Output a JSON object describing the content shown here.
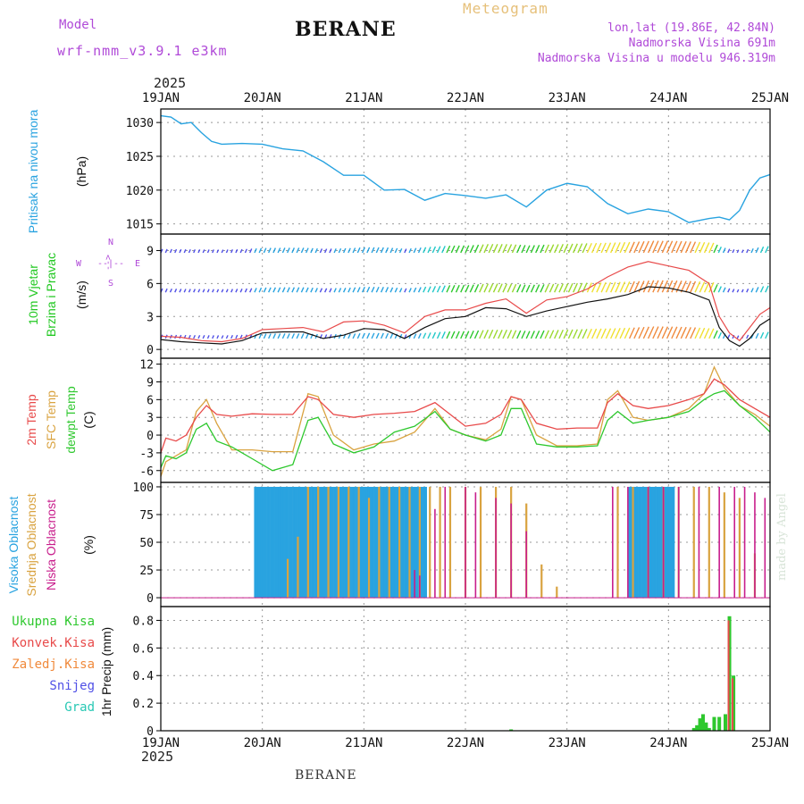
{
  "header": {
    "title": "BERANE",
    "model_label": "Model",
    "model_name": "wrf-nmm_v3.9.1 e3km",
    "meteogram": "Meteogram",
    "lonlat": "lon,lat (19.86E, 42.84N)",
    "elevation": "Nadmorska Visina 691m",
    "elevation_model": "Nadmorska Visina u modelu 946.319m",
    "year_top": "2025",
    "year_bottom": "2025"
  },
  "footer": "BERANE",
  "watermark": "made by Angel",
  "colors": {
    "pressure": "#29a3e0",
    "temp2m": "#e84a4a",
    "sfc": "#d9a340",
    "dew": "#2ec82e",
    "high": "#29a3e0",
    "mid": "#d9a340",
    "low": "#c81e8c",
    "total": "#2ec82e",
    "conv": "#e84a4a",
    "frozen": "#f08a3c",
    "snow": "#5050e6",
    "hail": "#28c8b4",
    "purple": "#b04ad8",
    "windlabel": "#22c822"
  },
  "x_axis": {
    "day_labels": [
      "19JAN",
      "20JAN",
      "21JAN",
      "22JAN",
      "23JAN",
      "24JAN",
      "25JAN"
    ]
  },
  "panels": {
    "pressure": {
      "label": "Pritisak na nivou mora",
      "unit": "(hPa)"
    },
    "wind": {
      "label1": "10m Vjetar",
      "label2": "Brzina i Pravac",
      "unit": "(m/s)",
      "dir_n": "N",
      "dir_s": "S",
      "dir_w": "W",
      "dir_e": "E",
      "arrow_v1": "<--",
      "arrow_v2": "-->",
      "arrow_h": "--|--"
    },
    "temp": {
      "label_2m": "2m Temp",
      "label_sfc": "SFC Temp",
      "label_dew": "dewpt Temp",
      "unit": "(C)"
    },
    "cloud": {
      "label_high": "Visoka Oblacnost",
      "label_mid": "Srednja Oblacnost",
      "label_low": "Niska Oblacnost",
      "unit": "(%)"
    },
    "precip": {
      "unit": "1hr Precip (mm)",
      "legend": [
        "Ukupna Kisa",
        "Konvek.Kisa",
        "Zaledj.Kisa",
        "Snijeg",
        "Grad"
      ]
    }
  },
  "chart_data": [
    {
      "type": "line",
      "title": "Pritisak na nivou mora",
      "ylabel": "(hPa)",
      "ylim": [
        1013.5,
        1032
      ],
      "yticks": [
        1015,
        1020,
        1025,
        1030
      ],
      "x_unit": "days since 19JAN 00UTC",
      "xlim": [
        0,
        6
      ],
      "series": [
        {
          "name": "Pressure",
          "x": [
            0,
            0.1,
            0.2,
            0.3,
            0.4,
            0.5,
            0.6,
            0.8,
            1.0,
            1.2,
            1.4,
            1.6,
            1.8,
            2.0,
            2.2,
            2.4,
            2.6,
            2.8,
            3.0,
            3.2,
            3.4,
            3.6,
            3.8,
            4.0,
            4.2,
            4.4,
            4.6,
            4.8,
            5.0,
            5.2,
            5.4,
            5.5,
            5.6,
            5.7,
            5.8,
            5.9,
            6.0
          ],
          "values": [
            1031.0,
            1030.8,
            1029.8,
            1030.0,
            1028.5,
            1027.2,
            1026.8,
            1026.9,
            1026.8,
            1026.1,
            1025.8,
            1024.2,
            1022.2,
            1022.2,
            1020.0,
            1020.1,
            1018.5,
            1019.5,
            1019.2,
            1018.8,
            1019.3,
            1017.5,
            1020.0,
            1021.0,
            1020.5,
            1018.0,
            1016.5,
            1017.2,
            1016.8,
            1015.2,
            1015.8,
            1016.0,
            1015.6,
            1017.0,
            1020.0,
            1021.8,
            1022.3
          ]
        }
      ]
    },
    {
      "type": "line",
      "title": "10m Vjetar Brzina i Pravac",
      "ylabel": "(m/s)",
      "ylim": [
        -0.8,
        10.5
      ],
      "yticks": [
        0,
        3,
        6,
        9
      ],
      "xlim": [
        0,
        6
      ],
      "series": [
        {
          "name": "Wind speed",
          "x": [
            0,
            0.2,
            0.4,
            0.6,
            0.8,
            1.0,
            1.2,
            1.4,
            1.6,
            1.8,
            2.0,
            2.2,
            2.4,
            2.6,
            2.8,
            3.0,
            3.2,
            3.4,
            3.6,
            3.8,
            4.0,
            4.2,
            4.4,
            4.6,
            4.8,
            5.0,
            5.2,
            5.4,
            5.5,
            5.6,
            5.7,
            5.8,
            5.9,
            6.0
          ],
          "values": [
            0.9,
            0.7,
            0.6,
            0.5,
            0.8,
            1.5,
            1.6,
            1.6,
            1.0,
            1.3,
            1.9,
            1.8,
            1.0,
            2.0,
            2.8,
            3.0,
            3.8,
            3.7,
            3.0,
            3.5,
            3.9,
            4.3,
            4.6,
            5.0,
            5.7,
            5.6,
            5.2,
            4.5,
            2.0,
            0.8,
            0.3,
            1.0,
            2.2,
            2.8
          ]
        },
        {
          "name": "Wind gust",
          "x": [
            0,
            0.2,
            0.4,
            0.6,
            0.8,
            1.0,
            1.2,
            1.4,
            1.6,
            1.8,
            2.0,
            2.2,
            2.4,
            2.6,
            2.8,
            3.0,
            3.2,
            3.4,
            3.6,
            3.8,
            4.0,
            4.2,
            4.4,
            4.6,
            4.8,
            5.0,
            5.2,
            5.4,
            5.5,
            5.6,
            5.7,
            5.8,
            5.9,
            6.0
          ],
          "values": [
            1.2,
            1.1,
            0.8,
            0.7,
            1.0,
            1.8,
            1.9,
            2.0,
            1.6,
            2.5,
            2.6,
            2.2,
            1.5,
            3.0,
            3.6,
            3.6,
            4.2,
            4.6,
            3.3,
            4.5,
            4.8,
            5.5,
            6.6,
            7.5,
            8.0,
            7.6,
            7.2,
            6.0,
            3.0,
            1.5,
            0.8,
            2.0,
            3.2,
            3.8
          ]
        }
      ]
    },
    {
      "type": "line",
      "title": "Temperature",
      "ylabel": "(C)",
      "ylim": [
        -8,
        13
      ],
      "yticks": [
        -6,
        -3,
        0,
        3,
        6,
        9,
        12
      ],
      "xlim": [
        0,
        6
      ],
      "series": [
        {
          "name": "2m Temp",
          "x": [
            0,
            0.05,
            0.15,
            0.25,
            0.35,
            0.45,
            0.55,
            0.7,
            0.9,
            1.1,
            1.3,
            1.45,
            1.55,
            1.7,
            1.9,
            2.1,
            2.3,
            2.5,
            2.7,
            2.85,
            3.0,
            3.2,
            3.35,
            3.45,
            3.55,
            3.7,
            3.9,
            4.1,
            4.3,
            4.4,
            4.5,
            4.65,
            4.8,
            5.0,
            5.2,
            5.35,
            5.45,
            5.55,
            5.7,
            5.85,
            6.0
          ],
          "values": [
            -3.0,
            -0.5,
            -1.0,
            0.0,
            3.0,
            5.0,
            3.5,
            3.2,
            3.6,
            3.5,
            3.5,
            6.5,
            6.0,
            3.5,
            3.0,
            3.5,
            3.7,
            4.0,
            5.5,
            3.5,
            1.5,
            2.0,
            3.5,
            6.5,
            6.0,
            2.0,
            1.0,
            1.2,
            1.2,
            5.5,
            7.0,
            5.0,
            4.5,
            5.0,
            6.0,
            7.0,
            9.5,
            8.5,
            6.0,
            4.5,
            3.0
          ]
        },
        {
          "name": "SFC Temp",
          "x": [
            0,
            0.05,
            0.15,
            0.25,
            0.35,
            0.45,
            0.55,
            0.7,
            0.9,
            1.1,
            1.3,
            1.45,
            1.55,
            1.7,
            1.9,
            2.1,
            2.3,
            2.5,
            2.7,
            2.85,
            3.0,
            3.2,
            3.35,
            3.45,
            3.55,
            3.7,
            3.9,
            4.1,
            4.3,
            4.4,
            4.5,
            4.65,
            4.8,
            5.0,
            5.2,
            5.35,
            5.45,
            5.55,
            5.7,
            5.85,
            6.0
          ],
          "values": [
            -7.0,
            -4.5,
            -3.5,
            -2.5,
            4.0,
            6.0,
            2.0,
            -2.5,
            -2.5,
            -2.8,
            -2.8,
            7.0,
            6.5,
            0.0,
            -2.5,
            -1.5,
            -1.0,
            0.5,
            4.5,
            1.0,
            0.0,
            -0.8,
            1.0,
            6.5,
            6.0,
            0.0,
            -1.8,
            -1.8,
            -1.5,
            6.0,
            7.5,
            3.0,
            2.5,
            3.0,
            4.5,
            7.0,
            11.5,
            8.0,
            5.0,
            3.5,
            1.5
          ]
        },
        {
          "name": "dewpt Temp",
          "x": [
            0,
            0.05,
            0.15,
            0.25,
            0.35,
            0.45,
            0.55,
            0.7,
            0.9,
            1.1,
            1.3,
            1.45,
            1.55,
            1.7,
            1.9,
            2.1,
            2.3,
            2.5,
            2.7,
            2.85,
            3.0,
            3.2,
            3.35,
            3.45,
            3.55,
            3.7,
            3.9,
            4.1,
            4.3,
            4.4,
            4.5,
            4.65,
            4.8,
            5.0,
            5.2,
            5.35,
            5.45,
            5.55,
            5.7,
            5.85,
            6.0
          ],
          "values": [
            -5.5,
            -3.5,
            -4.0,
            -3.0,
            1.0,
            2.0,
            -1.0,
            -2.0,
            -4.0,
            -6.0,
            -5.0,
            2.5,
            3.0,
            -1.5,
            -3.0,
            -2.0,
            0.5,
            1.5,
            4.0,
            1.0,
            0.0,
            -1.0,
            0.0,
            4.5,
            4.5,
            -1.5,
            -2.0,
            -2.0,
            -1.8,
            2.5,
            4.0,
            2.0,
            2.5,
            3.0,
            4.0,
            6.0,
            7.0,
            7.5,
            5.0,
            3.0,
            0.5
          ]
        }
      ]
    },
    {
      "type": "bar",
      "title": "Oblacnost",
      "ylabel": "(%)",
      "ylim": [
        -8,
        104
      ],
      "yticks": [
        0,
        25,
        50,
        75,
        100
      ],
      "xlim": [
        0,
        6
      ],
      "series": [
        {
          "name": "Visoka Oblacnost",
          "x": [
            0.93,
            0.95,
            0.97,
            0.99,
            1.01,
            1.03,
            1.05,
            1.07,
            1.09,
            1.11,
            1.13,
            1.15,
            1.17,
            1.19,
            1.21,
            1.23,
            1.25,
            1.27,
            1.29,
            1.31,
            1.33,
            1.35,
            1.37,
            1.39,
            1.41,
            1.43,
            1.45,
            1.47,
            1.49,
            1.51,
            1.53,
            1.55,
            1.57,
            1.59,
            1.61,
            1.63,
            1.65,
            1.67,
            1.69,
            1.71,
            1.73,
            1.75,
            1.77,
            1.79,
            1.81,
            1.83,
            1.85,
            1.87,
            1.89,
            1.91,
            1.93,
            1.95,
            1.97,
            1.99,
            2.01,
            2.03,
            2.05,
            2.07,
            2.09,
            2.11,
            2.13,
            2.15,
            2.17,
            2.19,
            2.21,
            2.23,
            2.25,
            2.27,
            2.29,
            2.31,
            2.33,
            2.35,
            2.37,
            2.39,
            2.41,
            2.43,
            2.45,
            2.47,
            2.49,
            2.51,
            2.53,
            2.55,
            2.57,
            2.59,
            2.61,
            4.61,
            4.63,
            4.65,
            4.67,
            4.69,
            4.71,
            4.73,
            4.75,
            4.77,
            4.79,
            4.81,
            4.83,
            4.85,
            4.87,
            4.89,
            4.91,
            4.93,
            4.95,
            4.97,
            4.99,
            5.01,
            5.03,
            5.05
          ],
          "values": [
            100,
            100,
            100,
            100,
            100,
            100,
            100,
            100,
            100,
            100,
            100,
            100,
            100,
            100,
            100,
            100,
            100,
            100,
            100,
            100,
            100,
            100,
            100,
            100,
            100,
            100,
            100,
            100,
            100,
            100,
            100,
            100,
            100,
            100,
            100,
            100,
            100,
            100,
            100,
            100,
            100,
            100,
            100,
            100,
            100,
            100,
            100,
            100,
            100,
            100,
            100,
            100,
            100,
            100,
            100,
            100,
            100,
            100,
            100,
            100,
            100,
            100,
            100,
            100,
            100,
            100,
            100,
            100,
            100,
            100,
            100,
            100,
            100,
            100,
            100,
            100,
            100,
            100,
            100,
            100,
            100,
            100,
            100,
            100,
            100,
            100,
            100,
            100,
            100,
            100,
            100,
            100,
            100,
            100,
            100,
            100,
            100,
            100,
            100,
            100,
            100,
            100,
            100,
            100,
            100,
            100,
            100,
            100
          ]
        },
        {
          "name": "Srednja Oblacnost",
          "x": [
            1.25,
            1.35,
            1.45,
            1.55,
            1.65,
            1.75,
            1.85,
            1.95,
            2.05,
            2.15,
            2.25,
            2.35,
            2.45,
            2.55,
            2.65,
            2.75,
            2.85,
            3.0,
            3.15,
            3.3,
            3.45,
            3.6,
            3.75,
            3.9,
            4.05,
            4.2,
            4.35,
            4.5,
            4.65,
            4.8,
            4.95,
            5.1,
            5.25,
            5.4,
            5.55,
            5.7,
            5.85
          ],
          "values": [
            35,
            55,
            100,
            100,
            100,
            100,
            100,
            100,
            90,
            100,
            100,
            100,
            100,
            100,
            100,
            100,
            100,
            100,
            100,
            100,
            100,
            85,
            30,
            10,
            0,
            0,
            0,
            100,
            100,
            100,
            100,
            100,
            100,
            100,
            95,
            90,
            40
          ]
        },
        {
          "name": "Niska Oblacnost",
          "x": [
            2.5,
            2.55,
            2.7,
            2.8,
            3.0,
            3.1,
            3.3,
            3.45,
            3.6,
            4.45,
            4.6,
            4.8,
            4.95,
            5.1,
            5.3,
            5.5,
            5.65,
            5.75,
            5.85,
            5.95
          ],
          "values": [
            25,
            20,
            80,
            100,
            100,
            95,
            90,
            85,
            60,
            100,
            100,
            100,
            100,
            100,
            100,
            100,
            100,
            100,
            95,
            90
          ]
        }
      ]
    },
    {
      "type": "bar",
      "title": "1hr Precip",
      "ylabel": "1hr Precip (mm)",
      "ylim": [
        0,
        0.9
      ],
      "yticks": [
        0,
        0.2,
        0.4,
        0.6,
        0.8
      ],
      "xlim": [
        0,
        6
      ],
      "series": [
        {
          "name": "Ukupna Kisa",
          "x": [
            3.45,
            5.25,
            5.28,
            5.31,
            5.34,
            5.37,
            5.4,
            5.45,
            5.5,
            5.56,
            5.6,
            5.64
          ],
          "values": [
            0.01,
            0.02,
            0.04,
            0.09,
            0.12,
            0.06,
            0.02,
            0.1,
            0.1,
            0.12,
            0.83,
            0.4
          ]
        },
        {
          "name": "Konvek.Kisa",
          "x": [
            5.6,
            5.64
          ],
          "values": [
            0.8,
            0.38
          ]
        },
        {
          "name": "Zaledj.Kisa",
          "x": [],
          "values": []
        },
        {
          "name": "Snijeg",
          "x": [],
          "values": []
        },
        {
          "name": "Grad",
          "x": [],
          "values": []
        }
      ]
    }
  ]
}
